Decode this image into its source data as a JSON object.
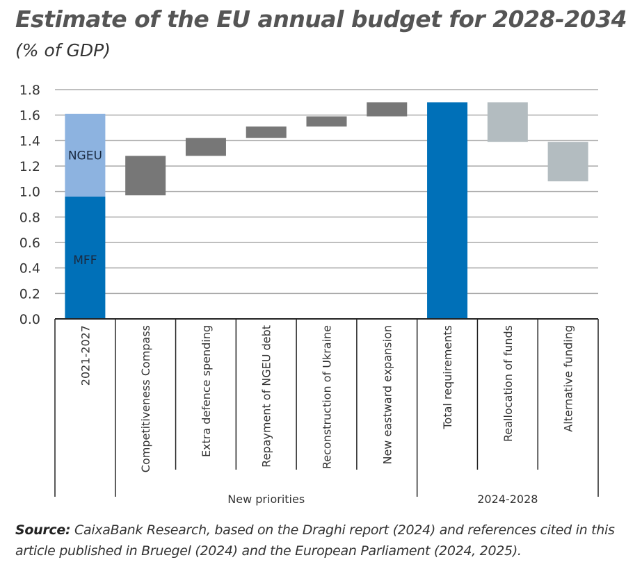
{
  "title": "Estimate of the EU annual budget for 2028-2034",
  "subtitle": "(% of GDP)",
  "source": {
    "label": "Source:",
    "text": " CaixaBank Research, based on the Draghi report (2024) and references cited in this article published in Bruegel (2024) and the European Parliament (2024, 2025)."
  },
  "chart_data": {
    "type": "bar",
    "subtype": "waterfall",
    "ylim": [
      0,
      1.8
    ],
    "yticks": [
      "0.0",
      "0.2",
      "0.4",
      "0.6",
      "0.8",
      "1.0",
      "1.2",
      "1.4",
      "1.6",
      "1.8"
    ],
    "grid": true,
    "categories": [
      "2021-2027",
      "Competitiveness Compass",
      "Extra defence spending",
      "Repayment of NGEU debt",
      "Reconstruction of Ukraine",
      "New eastward expansion",
      "Total requirements",
      "Reallocation of funds",
      "Alternative funding"
    ],
    "groups": [
      {
        "label": "New priorities",
        "from": 1,
        "to": 5
      },
      {
        "label": "2024-2028",
        "from": 6,
        "to": 8
      }
    ],
    "bars": [
      {
        "category": "2021-2027",
        "segments": [
          {
            "label": "MFF",
            "from": 0,
            "to": 0.96,
            "color": "#0070b8"
          },
          {
            "label": "NGEU",
            "from": 0.96,
            "to": 1.61,
            "color": "#8db3e0"
          }
        ]
      },
      {
        "category": "Competitiveness Compass",
        "segments": [
          {
            "from": 0.97,
            "to": 1.28,
            "color": "#777777"
          }
        ]
      },
      {
        "category": "Extra defence spending",
        "segments": [
          {
            "from": 1.28,
            "to": 1.42,
            "color": "#777777"
          }
        ]
      },
      {
        "category": "Repayment of NGEU debt",
        "segments": [
          {
            "from": 1.42,
            "to": 1.51,
            "color": "#777777"
          }
        ]
      },
      {
        "category": "Reconstruction of Ukraine",
        "segments": [
          {
            "from": 1.51,
            "to": 1.59,
            "color": "#777777"
          }
        ]
      },
      {
        "category": "New eastward expansion",
        "segments": [
          {
            "from": 1.59,
            "to": 1.7,
            "color": "#777777"
          }
        ]
      },
      {
        "category": "Total requirements",
        "segments": [
          {
            "from": 0,
            "to": 1.7,
            "color": "#0070b8"
          }
        ]
      },
      {
        "category": "Reallocation of funds",
        "segments": [
          {
            "from": 1.39,
            "to": 1.7,
            "color": "#b3bcc0"
          }
        ]
      },
      {
        "category": "Alternative funding",
        "segments": [
          {
            "from": 1.08,
            "to": 1.39,
            "color": "#b3bcc0"
          }
        ]
      }
    ]
  }
}
